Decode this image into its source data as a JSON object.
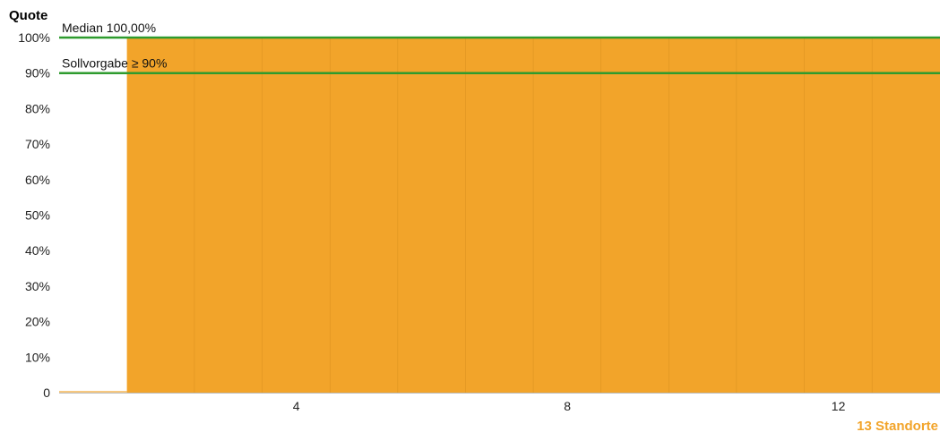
{
  "chart_data": {
    "type": "bar",
    "ylabel": "Quote",
    "y_ticks": [
      "0",
      "10%",
      "20%",
      "30%",
      "40%",
      "50%",
      "60%",
      "70%",
      "80%",
      "90%",
      "100%"
    ],
    "ylim": [
      0,
      100
    ],
    "x_ticks": [
      4,
      8,
      12
    ],
    "x_tick_labels": [
      "4",
      "8",
      "12"
    ],
    "categories": [
      1,
      2,
      3,
      4,
      5,
      6,
      7,
      8,
      9,
      10,
      11,
      12,
      13
    ],
    "values": [
      0,
      100,
      100,
      100,
      100,
      100,
      100,
      100,
      100,
      100,
      100,
      100,
      100
    ],
    "reference_lines": [
      {
        "label": "Median 100,00%",
        "value": 100
      },
      {
        "label": "Sollvorgabe ≥ 90%",
        "value": 90
      }
    ],
    "count_label": "13 Standorte",
    "grid": false,
    "colors": {
      "bar": "#f2a42a",
      "bar_divider": "#d9901f",
      "reference_line": "#2e9b2e",
      "count_label": "#f2a42a"
    }
  }
}
